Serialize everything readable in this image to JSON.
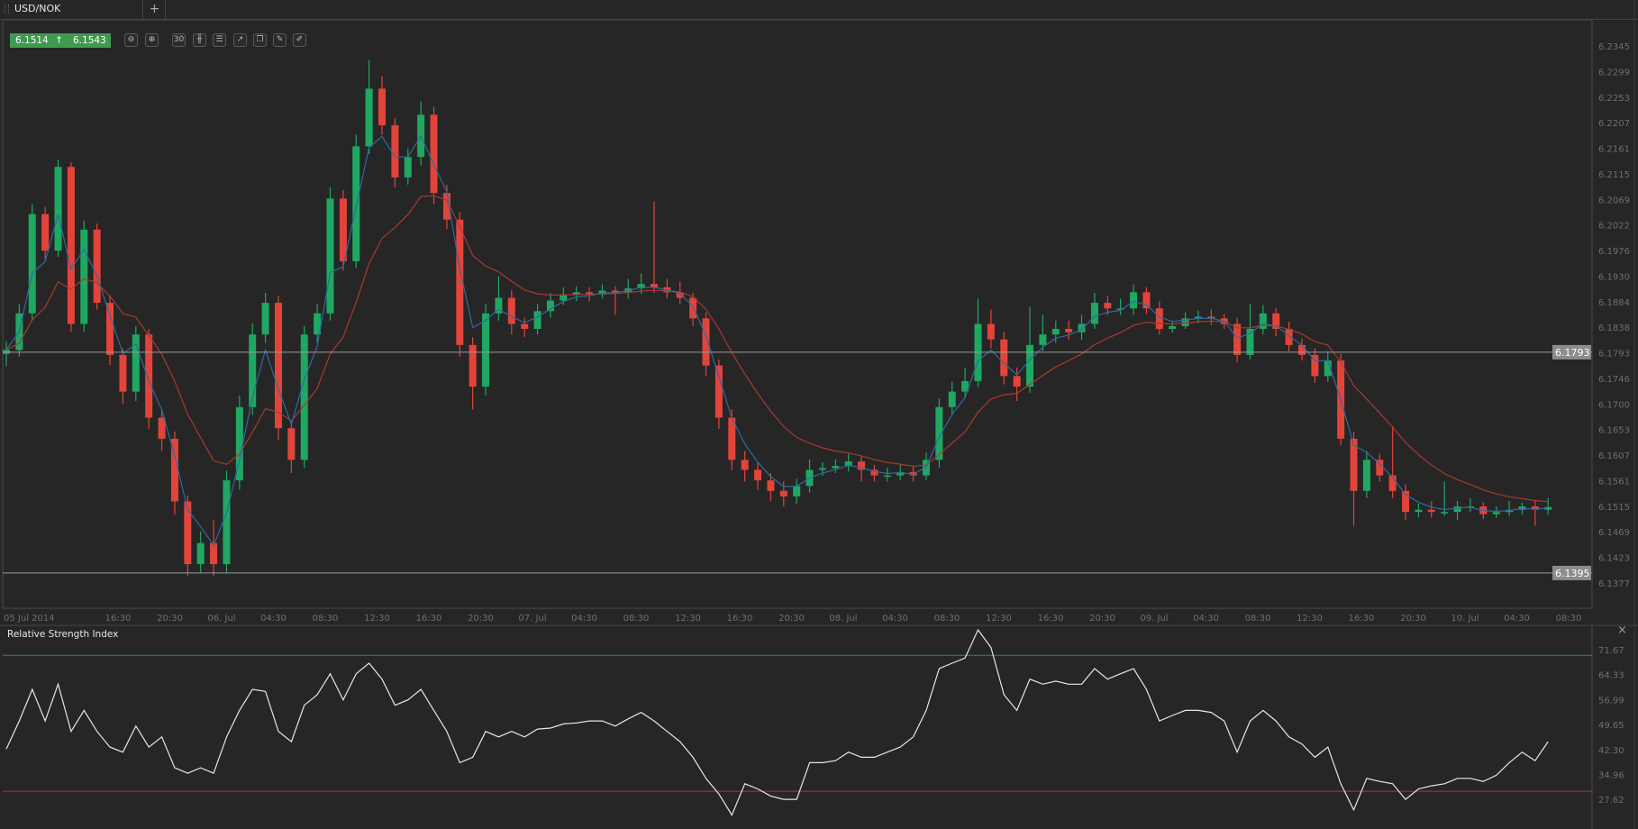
{
  "tabs": {
    "active": "USD/NOK",
    "add_label": "+"
  },
  "quote": {
    "bid": "6.1514",
    "ask": "6.1543",
    "direction_icon": "arrow-up-icon",
    "color": "#3f9a4f"
  },
  "toolbar": [
    {
      "name": "zoom-out-icon",
      "glyph": "⊖"
    },
    {
      "name": "zoom-in-icon",
      "glyph": "⊕"
    },
    {
      "name": "timeframe-30-icon",
      "glyph": "30"
    },
    {
      "name": "chart-type-candles-icon",
      "glyph": "╫"
    },
    {
      "name": "settings-sliders-icon",
      "glyph": "☰"
    },
    {
      "name": "indicators-icon",
      "glyph": "↗"
    },
    {
      "name": "copy-icon",
      "glyph": "❐"
    },
    {
      "name": "edit-icon",
      "glyph": "✎"
    },
    {
      "name": "draw-icon",
      "glyph": "✐"
    }
  ],
  "colors": {
    "up": "#1fa862",
    "down": "#e3443a",
    "ma_fast": "#2f6a9e",
    "ma_slow": "#a83a30",
    "rsi_line": "#e6e6e6",
    "rsi_upper": "#2f8a4a",
    "rsi_lower": "#b83232",
    "hline": "#9a9a9a"
  },
  "chart_data": [
    {
      "type": "candlestick",
      "symbol": "USD/NOK",
      "ylim": [
        6.1377,
        6.2345
      ],
      "y_ticks": [
        "6.2345",
        "6.2299",
        "6.2253",
        "6.2207",
        "6.2161",
        "6.2115",
        "6.2069",
        "6.2022",
        "6.1976",
        "6.1930",
        "6.1884",
        "6.1838",
        "6.1793",
        "6.1746",
        "6.1700",
        "6.1653",
        "6.1607",
        "6.1561",
        "6.1515",
        "6.1469",
        "6.1423",
        "6.1377"
      ],
      "horizontal_lines": [
        "6.1793",
        "6.1395"
      ],
      "x_ticks": [
        "05 Jul 2014",
        "16:30",
        "20:30",
        "06. Jul",
        "04:30",
        "08:30",
        "12:30",
        "16:30",
        "20:30",
        "07. Jul",
        "04:30",
        "08:30",
        "12:30",
        "16:30",
        "20:30",
        "08. Jul",
        "04:30",
        "08:30",
        "12:30",
        "16:30",
        "20:30",
        "09. Jul",
        "04:30",
        "08:30",
        "12:30",
        "16:30",
        "20:30",
        "10. Jul",
        "04:30",
        "08:30"
      ],
      "ohlc": [
        [
          6.179,
          6.1812,
          6.1768,
          6.1797
        ],
        [
          6.1797,
          6.188,
          6.1785,
          6.1863
        ],
        [
          6.1863,
          6.206,
          6.185,
          6.2042
        ],
        [
          6.2042,
          6.2055,
          6.196,
          6.1976
        ],
        [
          6.1976,
          6.214,
          6.1965,
          6.2127
        ],
        [
          6.2127,
          6.2135,
          6.183,
          6.1844
        ],
        [
          6.1844,
          6.203,
          6.183,
          6.2014
        ],
        [
          6.2014,
          6.2025,
          6.187,
          6.1882
        ],
        [
          6.1882,
          6.1895,
          6.177,
          6.1788
        ],
        [
          6.1788,
          6.18,
          6.17,
          6.1722
        ],
        [
          6.1722,
          6.184,
          6.1705,
          6.1825
        ],
        [
          6.1825,
          6.1835,
          6.1655,
          6.1675
        ],
        [
          6.1675,
          6.169,
          6.1615,
          6.1637
        ],
        [
          6.1637,
          6.165,
          6.15,
          6.1524
        ],
        [
          6.1524,
          6.1535,
          6.139,
          6.1411
        ],
        [
          6.1411,
          6.147,
          6.1395,
          6.1449
        ],
        [
          6.1449,
          6.149,
          6.139,
          6.1411
        ],
        [
          6.1411,
          6.158,
          6.1395,
          6.1562
        ],
        [
          6.1562,
          6.1715,
          6.1545,
          6.1694
        ],
        [
          6.1694,
          6.1845,
          6.168,
          6.1825
        ],
        [
          6.1825,
          6.19,
          6.181,
          6.1882
        ],
        [
          6.1882,
          6.1895,
          6.1635,
          6.1656
        ],
        [
          6.1656,
          6.167,
          6.1575,
          6.1599
        ],
        [
          6.1599,
          6.184,
          6.1585,
          6.1825
        ],
        [
          6.1825,
          6.188,
          6.181,
          6.1863
        ],
        [
          6.1863,
          6.209,
          6.185,
          6.207
        ],
        [
          6.207,
          6.2085,
          6.194,
          6.1957
        ],
        [
          6.1957,
          6.2185,
          6.1945,
          6.2164
        ],
        [
          6.2164,
          6.232,
          6.215,
          6.2268
        ],
        [
          6.2268,
          6.229,
          6.2185,
          6.2202
        ],
        [
          6.2202,
          6.2215,
          6.209,
          6.2108
        ],
        [
          6.2108,
          6.216,
          6.2095,
          6.2145
        ],
        [
          6.2145,
          6.2245,
          6.213,
          6.2221
        ],
        [
          6.2221,
          6.2235,
          6.206,
          6.208
        ],
        [
          6.208,
          6.2095,
          6.2015,
          6.2032
        ],
        [
          6.2032,
          6.2045,
          6.1785,
          6.1806
        ],
        [
          6.1806,
          6.182,
          6.169,
          6.1731
        ],
        [
          6.1731,
          6.188,
          6.1715,
          6.1863
        ],
        [
          6.1863,
          6.193,
          6.185,
          6.1891
        ],
        [
          6.1891,
          6.1905,
          6.1825,
          6.1844
        ],
        [
          6.1844,
          6.1855,
          6.182,
          6.1835
        ],
        [
          6.1835,
          6.188,
          6.1825,
          6.1867
        ],
        [
          6.1867,
          6.19,
          6.1855,
          6.1886
        ],
        [
          6.1886,
          6.191,
          6.1878,
          6.1897
        ],
        [
          6.1897,
          6.1912,
          6.1885,
          6.1901
        ],
        [
          6.1901,
          6.191,
          6.1885,
          6.1897
        ],
        [
          6.1897,
          6.1915,
          6.189,
          6.1904
        ],
        [
          6.1904,
          6.1912,
          6.186,
          6.1901
        ],
        [
          6.1901,
          6.1925,
          6.189,
          6.1908
        ],
        [
          6.1908,
          6.1935,
          6.1898,
          6.1916
        ],
        [
          6.1916,
          6.2065,
          6.19,
          6.191
        ],
        [
          6.191,
          6.1925,
          6.189,
          6.1901
        ],
        [
          6.1901,
          6.192,
          6.188,
          6.1891
        ],
        [
          6.1891,
          6.19,
          6.184,
          6.1854
        ],
        [
          6.1854,
          6.1865,
          6.175,
          6.1769
        ],
        [
          6.1769,
          6.178,
          6.1655,
          6.1675
        ],
        [
          6.1675,
          6.169,
          6.158,
          6.1599
        ],
        [
          6.1599,
          6.1615,
          6.156,
          6.1581
        ],
        [
          6.1581,
          6.1595,
          6.1545,
          6.1562
        ],
        [
          6.1562,
          6.1575,
          6.1525,
          6.1543
        ],
        [
          6.1543,
          6.156,
          6.1515,
          6.1533
        ],
        [
          6.1533,
          6.1565,
          6.152,
          6.1552
        ],
        [
          6.1552,
          6.16,
          6.154,
          6.1581
        ],
        [
          6.1581,
          6.1595,
          6.157,
          6.1584
        ],
        [
          6.1584,
          6.16,
          6.1575,
          6.1588
        ],
        [
          6.1588,
          6.161,
          6.1578,
          6.1596
        ],
        [
          6.1596,
          6.1605,
          6.156,
          6.1581
        ],
        [
          6.1581,
          6.159,
          6.156,
          6.1571
        ],
        [
          6.1571,
          6.1585,
          6.156,
          6.1571
        ],
        [
          6.1571,
          6.159,
          6.1562,
          6.1577
        ],
        [
          6.1577,
          6.1588,
          6.156,
          6.1571
        ],
        [
          6.1571,
          6.1612,
          6.1562,
          6.1599
        ],
        [
          6.1599,
          6.171,
          6.1585,
          6.1694
        ],
        [
          6.1694,
          6.174,
          6.168,
          6.1722
        ],
        [
          6.1722,
          6.1765,
          6.171,
          6.1741
        ],
        [
          6.1741,
          6.189,
          6.173,
          6.1844
        ],
        [
          6.1844,
          6.187,
          6.18,
          6.1816
        ],
        [
          6.1816,
          6.183,
          6.1735,
          6.175
        ],
        [
          6.175,
          6.1765,
          6.1705,
          6.1731
        ],
        [
          6.1731,
          6.1875,
          6.172,
          6.1806
        ],
        [
          6.1806,
          6.186,
          6.1795,
          6.1825
        ],
        [
          6.1825,
          6.185,
          6.181,
          6.1835
        ],
        [
          6.1835,
          6.185,
          6.1815,
          6.1829
        ],
        [
          6.1829,
          6.186,
          6.1815,
          6.1844
        ],
        [
          6.1844,
          6.19,
          6.1835,
          6.1882
        ],
        [
          6.1882,
          6.1895,
          6.186,
          6.1872
        ],
        [
          6.1872,
          6.189,
          6.186,
          6.1872
        ],
        [
          6.1872,
          6.1915,
          6.186,
          6.1901
        ],
        [
          6.1901,
          6.191,
          6.1862,
          6.1872
        ],
        [
          6.1872,
          6.1885,
          6.1825,
          6.1835
        ],
        [
          6.1835,
          6.185,
          6.1828,
          6.184
        ],
        [
          6.184,
          6.1865,
          6.1835,
          6.1854
        ],
        [
          6.1854,
          6.1868,
          6.1845,
          6.1857
        ],
        [
          6.1857,
          6.187,
          6.1842,
          6.1854
        ],
        [
          6.1854,
          6.1862,
          6.1835,
          6.1844
        ],
        [
          6.1844,
          6.1855,
          6.1775,
          6.1788
        ],
        [
          6.1788,
          6.188,
          6.178,
          6.1835
        ],
        [
          6.1835,
          6.1878,
          6.1825,
          6.1863
        ],
        [
          6.1863,
          6.1872,
          6.1822,
          6.1835
        ],
        [
          6.1835,
          6.1848,
          6.1795,
          6.1806
        ],
        [
          6.1806,
          6.1818,
          6.1778,
          6.1788
        ],
        [
          6.1788,
          6.18,
          6.1738,
          6.175
        ],
        [
          6.175,
          6.1795,
          6.174,
          6.1778
        ],
        [
          6.1778,
          6.179,
          6.1625,
          6.1637
        ],
        [
          6.1637,
          6.165,
          6.148,
          6.1543
        ],
        [
          6.1543,
          6.1615,
          6.153,
          6.1599
        ],
        [
          6.1599,
          6.161,
          6.156,
          6.1571
        ],
        [
          6.1571,
          6.166,
          6.153,
          6.1543
        ],
        [
          6.1543,
          6.1555,
          6.149,
          6.1505
        ],
        [
          6.1505,
          6.152,
          6.1495,
          6.1509
        ],
        [
          6.1509,
          6.1525,
          6.1495,
          6.1505
        ],
        [
          6.1505,
          6.156,
          6.1498,
          6.1505
        ],
        [
          6.1505,
          6.1525,
          6.149,
          6.1515
        ],
        [
          6.1515,
          6.153,
          6.1505,
          6.1515
        ],
        [
          6.1515,
          6.1522,
          6.1492,
          6.1501
        ],
        [
          6.1501,
          6.1515,
          6.1494,
          6.1505
        ],
        [
          6.1505,
          6.1525,
          6.1498,
          6.1509
        ],
        [
          6.1509,
          6.1522,
          6.15,
          6.1515
        ],
        [
          6.1515,
          6.1525,
          6.148,
          6.1509
        ],
        [
          6.1509,
          6.153,
          6.15,
          6.1514
        ]
      ]
    },
    {
      "type": "line",
      "title": "Relative Strength Index",
      "ylim": [
        24,
        78
      ],
      "y_ticks": [
        "71.67",
        "64.33",
        "56.99",
        "49.65",
        "42.30",
        "34.96",
        "27.62"
      ],
      "levels": [
        70,
        30
      ],
      "values": [
        42.4,
        50.7,
        60,
        50.7,
        61.5,
        47.6,
        53.8,
        47.6,
        43,
        41.5,
        49.2,
        43,
        46,
        36.9,
        35.3,
        36.9,
        35.3,
        46,
        53.8,
        60,
        59.4,
        47.6,
        44.6,
        55.3,
        58.4,
        64.6,
        56.9,
        64.6,
        67.7,
        63,
        55.3,
        56.9,
        60,
        53.8,
        47.6,
        38.4,
        40,
        47.6,
        46,
        47.6,
        46,
        48.3,
        48.6,
        49.8,
        50.1,
        50.7,
        50.7,
        49.2,
        51.3,
        53.2,
        50.7,
        47.6,
        44.6,
        40,
        33.8,
        29.2,
        23,
        32.2,
        30.7,
        28.6,
        27.6,
        27.6,
        38.4,
        38.4,
        39,
        41.5,
        40,
        40,
        41.5,
        43,
        46,
        53.8,
        66.1,
        67.7,
        69.2,
        77.5,
        72.3,
        58.4,
        53.8,
        63,
        61.5,
        62.4,
        61.5,
        61.5,
        66.1,
        63,
        64.6,
        66.1,
        60,
        50.7,
        52.3,
        53.8,
        53.8,
        53.2,
        50.7,
        41.5,
        50.7,
        53.8,
        50.7,
        46,
        43.9,
        40,
        43,
        32.2,
        24.5,
        33.8,
        32.9,
        32.2,
        27.6,
        30.7,
        31.6,
        32.2,
        33.8,
        33.8,
        32.9,
        34.7,
        38.4,
        41.5,
        39,
        44.6
      ],
      "close_label": "×"
    }
  ]
}
